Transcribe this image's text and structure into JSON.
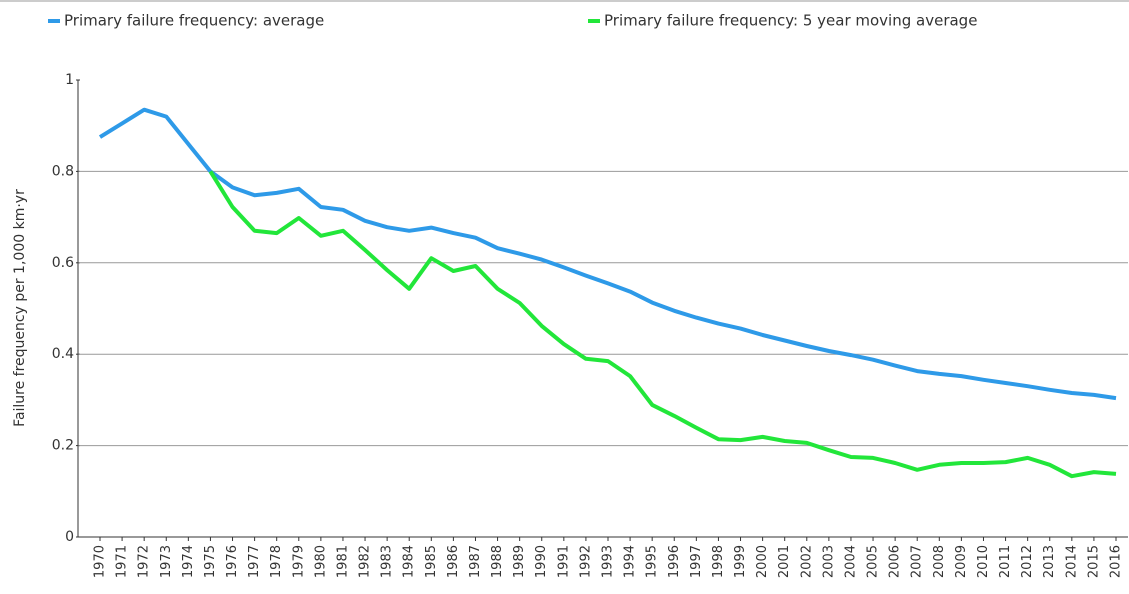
{
  "chart_data": {
    "type": "line",
    "y_label": "Failure frequency per 1,000 km·yr",
    "categories": [
      "1970",
      "1971",
      "1972",
      "1973",
      "1974",
      "1975",
      "1976",
      "1977",
      "1978",
      "1979",
      "1980",
      "1981",
      "1982",
      "1983",
      "1984",
      "1985",
      "1986",
      "1987",
      "1988",
      "1989",
      "1990",
      "1991",
      "1992",
      "1993",
      "1994",
      "1995",
      "1996",
      "1997",
      "1998",
      "1999",
      "2000",
      "2001",
      "2002",
      "2003",
      "2004",
      "2005",
      "2006",
      "2007",
      "2008",
      "2009",
      "2010",
      "2011",
      "2012",
      "2013",
      "2014",
      "2015",
      "2016"
    ],
    "series": [
      {
        "name": "Primary failure frequency: average",
        "color": "#2e9ae8",
        "values": [
          0.875,
          0.905,
          0.935,
          0.92,
          0.86,
          0.8,
          0.765,
          0.748,
          0.753,
          0.762,
          0.722,
          0.716,
          0.692,
          0.678,
          0.67,
          0.677,
          0.665,
          0.655,
          0.632,
          0.62,
          0.607,
          0.59,
          0.572,
          0.555,
          0.537,
          0.513,
          0.495,
          0.48,
          0.467,
          0.456,
          0.442,
          0.43,
          0.418,
          0.407,
          0.398,
          0.388,
          0.375,
          0.363,
          0.357,
          0.352,
          0.344,
          0.337,
          0.33,
          0.322,
          0.315,
          0.311,
          0.304
        ]
      },
      {
        "name": "Primary failure frequency: 5 year moving average",
        "color": "#22e63a",
        "values": [
          null,
          null,
          null,
          null,
          null,
          0.8,
          0.722,
          0.67,
          0.665,
          0.698,
          0.659,
          0.67,
          0.628,
          0.584,
          0.543,
          0.61,
          0.582,
          0.593,
          0.543,
          0.512,
          0.462,
          0.422,
          0.39,
          0.385,
          0.352,
          0.289,
          0.265,
          0.239,
          0.214,
          0.212,
          0.219,
          0.21,
          0.206,
          0.19,
          0.175,
          0.173,
          0.162,
          0.147,
          0.158,
          0.162,
          0.162,
          0.164,
          0.173,
          0.158,
          0.133,
          0.142,
          0.138
        ]
      }
    ],
    "ylim": [
      0,
      1
    ],
    "yticks": [
      0,
      0.2,
      0.4,
      0.6,
      0.8,
      1
    ],
    "grid": true,
    "legend": "top"
  }
}
